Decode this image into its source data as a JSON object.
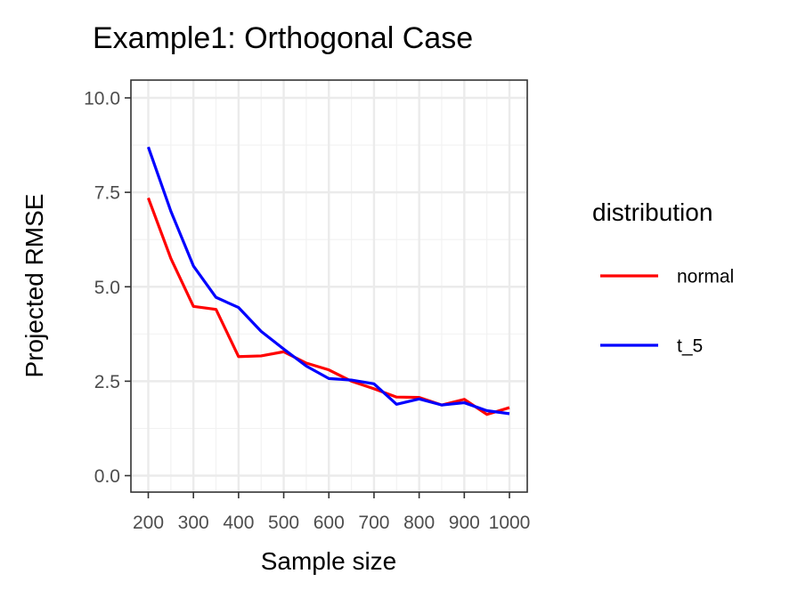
{
  "chart_data": {
    "type": "line",
    "title": "Example1: Orthogonal Case",
    "xlabel": "Sample size",
    "ylabel": "Projected RMSE",
    "xlim": [
      200,
      1000
    ],
    "ylim": [
      0,
      10
    ],
    "x_ticks": [
      200,
      300,
      400,
      500,
      600,
      700,
      800,
      900,
      1000
    ],
    "x_tick_labels": [
      "200",
      "300",
      "400",
      "500",
      "600",
      "700",
      "800",
      "900",
      "1000"
    ],
    "y_ticks": [
      0,
      2.5,
      5,
      7.5,
      10
    ],
    "y_tick_labels": [
      "0.0",
      "2.5",
      "5.0",
      "7.5",
      "10.0"
    ],
    "grid": true,
    "legend": {
      "title": "distribution",
      "position": "right"
    },
    "x": [
      200,
      250,
      300,
      350,
      400,
      450,
      500,
      550,
      600,
      650,
      700,
      750,
      800,
      850,
      900,
      950,
      1000
    ],
    "series": [
      {
        "name": "normal",
        "color": "#ff0000",
        "values": [
          7.35,
          5.75,
          4.48,
          4.4,
          3.15,
          3.17,
          3.28,
          2.98,
          2.8,
          2.5,
          2.3,
          2.08,
          2.07,
          1.87,
          2.02,
          1.62,
          1.8
        ]
      },
      {
        "name": "t_5",
        "color": "#0000ff",
        "values": [
          8.7,
          7.0,
          5.55,
          4.72,
          4.45,
          3.82,
          3.35,
          2.9,
          2.57,
          2.53,
          2.43,
          1.89,
          2.03,
          1.87,
          1.93,
          1.72,
          1.64
        ]
      }
    ]
  }
}
